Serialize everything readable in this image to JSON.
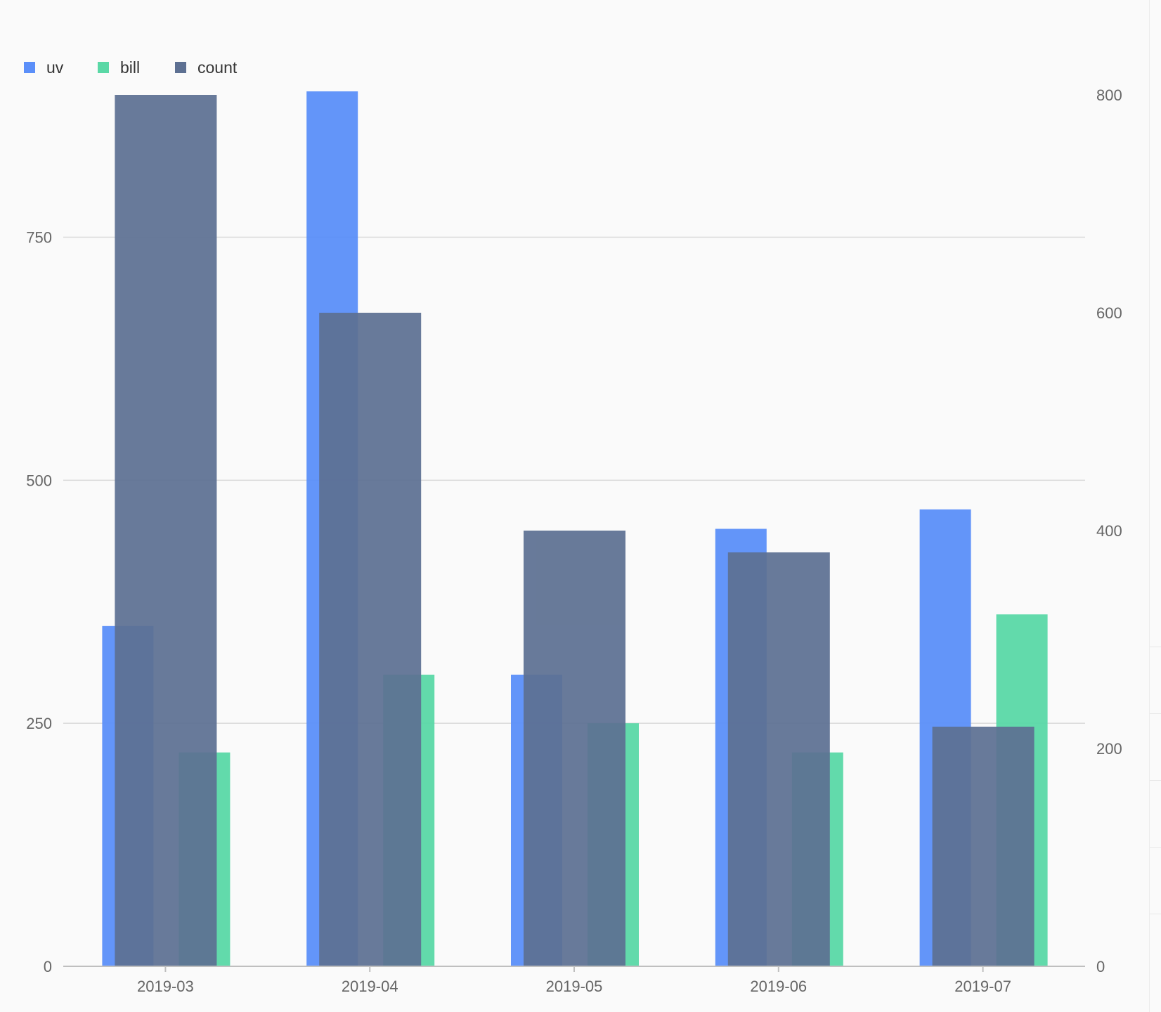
{
  "chart_data": {
    "type": "bar",
    "categories": [
      "2019-03",
      "2019-04",
      "2019-05",
      "2019-06",
      "2019-07"
    ],
    "series": [
      {
        "name": "uv",
        "axis": "left",
        "color": "#5b8ff9",
        "values": [
          350,
          900,
          300,
          450,
          470
        ]
      },
      {
        "name": "bill",
        "axis": "left",
        "color": "#5ad8a6",
        "values": [
          220,
          300,
          250,
          220,
          362
        ]
      },
      {
        "name": "count",
        "axis": "right",
        "color": "#5d7092",
        "values": [
          800,
          600,
          400,
          380,
          220
        ]
      }
    ],
    "left_axis": {
      "min": 0,
      "max": 900,
      "ticks": [
        "0",
        "250",
        "500",
        "750"
      ]
    },
    "right_axis": {
      "min": 0,
      "max": 800,
      "ticks": [
        "0",
        "200",
        "400",
        "600",
        "800"
      ]
    },
    "grid": true,
    "legend_position": "top-left"
  }
}
